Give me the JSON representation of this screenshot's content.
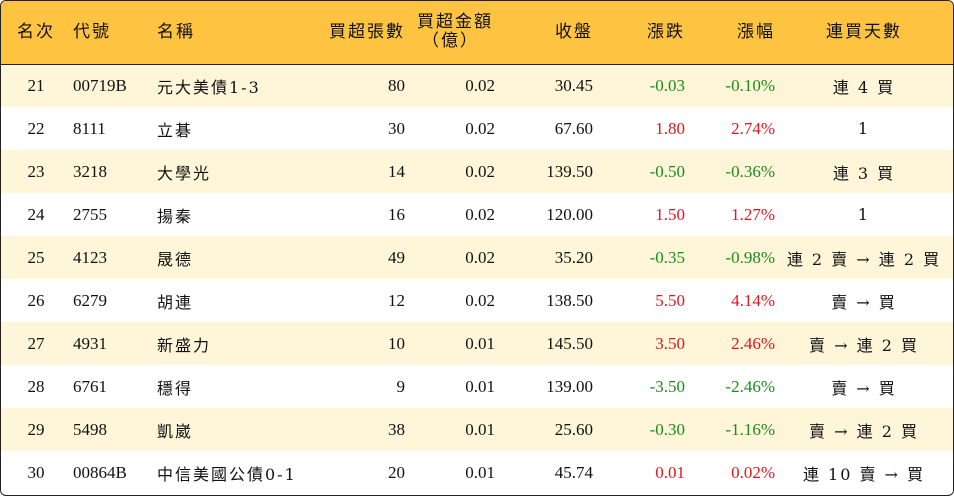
{
  "headers": {
    "rank": "名次",
    "code": "代號",
    "name": "名稱",
    "buy_lots": "買超張數",
    "buy_amount_line1": "買超金額",
    "buy_amount_line2": "（億）",
    "close": "收盤",
    "change": "漲跌",
    "pct": "漲幅",
    "streak": "連買天數"
  },
  "rows": [
    {
      "rank": "21",
      "code": "00719B",
      "name": "元大美債1-3",
      "lots": "80",
      "amount": "0.02",
      "close": "30.45",
      "change": "-0.03",
      "pct": "-0.10%",
      "streak": "連 4 買",
      "dir": "down"
    },
    {
      "rank": "22",
      "code": "8111",
      "name": "立碁",
      "lots": "30",
      "amount": "0.02",
      "close": "67.60",
      "change": "1.80",
      "pct": "2.74%",
      "streak": "1",
      "dir": "up"
    },
    {
      "rank": "23",
      "code": "3218",
      "name": "大學光",
      "lots": "14",
      "amount": "0.02",
      "close": "139.50",
      "change": "-0.50",
      "pct": "-0.36%",
      "streak": "連 3 買",
      "dir": "down"
    },
    {
      "rank": "24",
      "code": "2755",
      "name": "揚秦",
      "lots": "16",
      "amount": "0.02",
      "close": "120.00",
      "change": "1.50",
      "pct": "1.27%",
      "streak": "1",
      "dir": "up"
    },
    {
      "rank": "25",
      "code": "4123",
      "name": "晟德",
      "lots": "49",
      "amount": "0.02",
      "close": "35.20",
      "change": "-0.35",
      "pct": "-0.98%",
      "streak": "連 2 賣 → 連 2 買",
      "dir": "down"
    },
    {
      "rank": "26",
      "code": "6279",
      "name": "胡連",
      "lots": "12",
      "amount": "0.02",
      "close": "138.50",
      "change": "5.50",
      "pct": "4.14%",
      "streak": "賣 → 買",
      "dir": "up"
    },
    {
      "rank": "27",
      "code": "4931",
      "name": "新盛力",
      "lots": "10",
      "amount": "0.01",
      "close": "145.50",
      "change": "3.50",
      "pct": "2.46%",
      "streak": "賣 → 連 2 買",
      "dir": "up"
    },
    {
      "rank": "28",
      "code": "6761",
      "name": "穩得",
      "lots": "9",
      "amount": "0.01",
      "close": "139.00",
      "change": "-3.50",
      "pct": "-2.46%",
      "streak": "賣 → 買",
      "dir": "down"
    },
    {
      "rank": "29",
      "code": "5498",
      "name": "凱崴",
      "lots": "38",
      "amount": "0.01",
      "close": "25.60",
      "change": "-0.30",
      "pct": "-1.16%",
      "streak": "賣 → 連 2 買",
      "dir": "down"
    },
    {
      "rank": "30",
      "code": "00864B",
      "name": "中信美國公債0-1",
      "lots": "20",
      "amount": "0.01",
      "close": "45.74",
      "change": "0.01",
      "pct": "0.02%",
      "streak": "連 10 賣 → 買",
      "dir": "up"
    }
  ],
  "colors": {
    "header_bg": "#ffc342",
    "stripe_bg": "#fff5d9",
    "up": "#e5151b",
    "down": "#1a8d1a"
  }
}
